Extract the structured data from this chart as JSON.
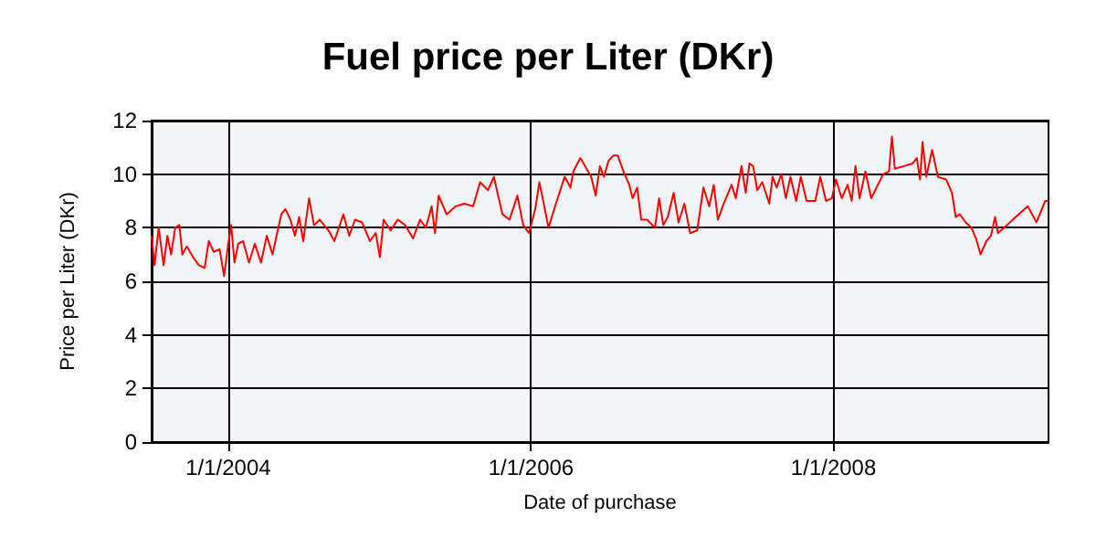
{
  "chart_data": {
    "type": "line",
    "title": "Fuel price per Liter (DKr)",
    "xlabel": "Date of purchase",
    "ylabel": "Price per Liter (DKr)",
    "xlim": [
      "2003-06-30",
      "2009-06-03"
    ],
    "xticks": [
      {
        "value": "2004-01-01",
        "label": "1/1/2004"
      },
      {
        "value": "2006-01-01",
        "label": "1/1/2006"
      },
      {
        "value": "2008-01-01",
        "label": "1/1/2008"
      }
    ],
    "ylim": [
      0,
      12
    ],
    "yticks": [
      0,
      2,
      4,
      6,
      8,
      10,
      12
    ],
    "grid": true,
    "marker": "none",
    "line_style": "solid",
    "x": [
      "2003-06-30",
      "2003-07-07",
      "2003-07-17",
      "2003-07-29",
      "2003-08-07",
      "2003-08-16",
      "2003-08-26",
      "2003-09-05",
      "2003-09-12",
      "2003-09-23",
      "2003-10-08",
      "2003-10-22",
      "2003-11-05",
      "2003-11-15",
      "2003-11-27",
      "2003-12-11",
      "2003-12-22",
      "2004-01-01",
      "2004-01-08",
      "2004-01-16",
      "2004-01-25",
      "2004-02-06",
      "2004-02-20",
      "2004-03-05",
      "2004-03-20",
      "2004-04-03",
      "2004-04-17",
      "2004-04-28",
      "2004-05-08",
      "2004-05-18",
      "2004-05-30",
      "2004-06-10",
      "2004-06-20",
      "2004-06-30",
      "2004-07-14",
      "2004-07-26",
      "2004-08-09",
      "2004-08-30",
      "2004-09-13",
      "2004-10-05",
      "2004-10-19",
      "2004-11-02",
      "2004-11-19",
      "2004-12-08",
      "2004-12-22",
      "2005-01-01",
      "2005-01-10",
      "2005-01-27",
      "2005-02-13",
      "2005-03-03",
      "2005-03-22",
      "2005-04-08",
      "2005-04-22",
      "2005-05-06",
      "2005-05-14",
      "2005-05-23",
      "2005-06-11",
      "2005-07-03",
      "2005-07-24",
      "2005-08-14",
      "2005-08-31",
      "2005-09-19",
      "2005-10-03",
      "2005-10-24",
      "2005-11-10",
      "2005-11-29",
      "2005-12-13",
      "2005-12-27",
      "2006-01-11",
      "2006-01-21",
      "2006-01-29",
      "2006-02-12",
      "2006-03-04",
      "2006-03-23",
      "2006-04-06",
      "2006-04-13",
      "2006-04-30",
      "2006-05-15",
      "2006-05-26",
      "2006-06-06",
      "2006-06-16",
      "2006-06-26",
      "2006-07-07",
      "2006-07-19",
      "2006-07-29",
      "2006-08-12",
      "2006-08-26",
      "2006-09-03",
      "2006-09-14",
      "2006-09-24",
      "2006-10-08",
      "2006-10-27",
      "2006-11-06",
      "2006-11-16",
      "2006-11-27",
      "2006-12-11",
      "2006-12-23",
      "2007-01-06",
      "2007-01-20",
      "2007-02-06",
      "2007-02-21",
      "2007-03-07",
      "2007-03-18",
      "2007-03-28",
      "2007-04-11",
      "2007-04-30",
      "2007-05-10",
      "2007-05-24",
      "2007-06-03",
      "2007-06-12",
      "2007-06-21",
      "2007-07-01",
      "2007-07-13",
      "2007-07-30",
      "2007-08-07",
      "2007-08-17",
      "2007-08-28",
      "2007-09-08",
      "2007-09-19",
      "2007-10-03",
      "2007-10-14",
      "2007-10-28",
      "2007-11-18",
      "2007-11-30",
      "2007-12-14",
      "2007-12-28",
      "2008-01-07",
      "2008-01-21",
      "2008-02-04",
      "2008-02-14",
      "2008-02-23",
      "2008-03-04",
      "2008-03-18",
      "2008-04-01",
      "2008-04-30",
      "2008-05-14",
      "2008-05-21",
      "2008-05-28",
      "2008-06-19",
      "2008-07-10",
      "2008-07-20",
      "2008-07-28",
      "2008-08-03",
      "2008-08-12",
      "2008-08-26",
      "2008-09-09",
      "2008-09-29",
      "2008-10-13",
      "2008-10-22",
      "2008-11-01",
      "2008-11-15",
      "2008-11-29",
      "2008-12-10",
      "2008-12-21",
      "2009-01-04",
      "2009-01-15",
      "2009-01-25",
      "2009-02-01",
      "2009-02-16",
      "2009-03-16",
      "2009-04-14",
      "2009-05-05",
      "2009-05-26",
      "2009-06-03"
    ],
    "series": [
      {
        "color": "#ff0000",
        "values": [
          7.7,
          6.6,
          8.0,
          6.6,
          7.7,
          7.0,
          8.0,
          8.1,
          7.0,
          7.3,
          6.9,
          6.6,
          6.5,
          7.5,
          7.1,
          7.2,
          6.2,
          7.4,
          8.1,
          6.7,
          7.4,
          7.5,
          6.7,
          7.4,
          6.7,
          7.7,
          7.0,
          7.8,
          8.5,
          8.7,
          8.3,
          7.7,
          8.4,
          7.5,
          9.1,
          8.1,
          8.3,
          7.9,
          7.5,
          8.5,
          7.7,
          8.3,
          8.2,
          7.5,
          7.8,
          6.9,
          8.3,
          7.9,
          8.3,
          8.1,
          7.6,
          8.3,
          8.0,
          8.8,
          7.8,
          9.2,
          8.5,
          8.8,
          8.9,
          8.8,
          9.7,
          9.4,
          9.9,
          8.5,
          8.3,
          9.2,
          8.1,
          7.8,
          8.7,
          9.7,
          9.1,
          8.0,
          9.0,
          9.9,
          9.5,
          10.1,
          10.6,
          10.2,
          9.9,
          9.2,
          10.3,
          9.9,
          10.5,
          10.7,
          10.7,
          10.1,
          9.6,
          9.1,
          9.5,
          8.3,
          8.3,
          8.0,
          9.1,
          8.1,
          8.4,
          9.3,
          8.2,
          8.9,
          7.8,
          7.9,
          9.5,
          8.8,
          9.6,
          8.3,
          8.9,
          9.6,
          9.1,
          10.3,
          9.3,
          10.4,
          10.3,
          9.4,
          9.7,
          8.9,
          9.9,
          9.5,
          10.0,
          9.1,
          9.9,
          9.0,
          9.9,
          9.0,
          9.0,
          9.9,
          9.0,
          9.1,
          9.8,
          9.1,
          9.6,
          9.0,
          10.3,
          9.1,
          10.1,
          9.1,
          10.0,
          10.1,
          11.4,
          10.2,
          10.3,
          10.4,
          10.6,
          9.8,
          11.2,
          9.9,
          10.9,
          9.9,
          9.8,
          9.3,
          8.4,
          8.5,
          8.2,
          8.0,
          7.6,
          7.0,
          7.5,
          7.7,
          8.4,
          7.8,
          8.0,
          8.4,
          8.8,
          8.2,
          9.0,
          9.0
        ]
      }
    ]
  }
}
